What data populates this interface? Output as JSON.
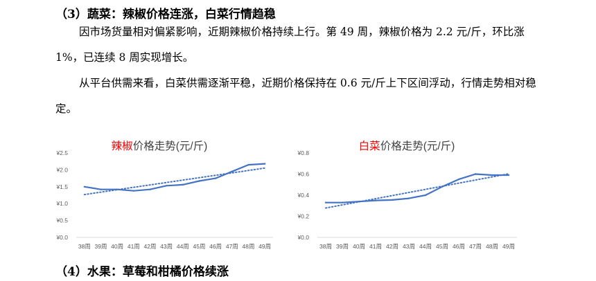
{
  "section3": {
    "heading": "（3）蔬菜：辣椒价格连涨，白菜行情趋稳",
    "para1": "因市场货量相对偏紧影响，近期辣椒价格持续上行。第 49 周，辣椒价格为 2.2 元/斤，环比涨 1%，已连续 8 周实现增长。",
    "para2": "从平台供需来看，白菜供需逐渐平稳，近期价格保持在 0.6 元/斤上下区间浮动，行情走势相对稳定。"
  },
  "section4": {
    "heading": "（4）水果：草莓和柑橘价格续涨"
  },
  "colors": {
    "series": "#4472C4",
    "title_highlight": "#FF0000",
    "axis_text": "#595959",
    "axis_line": "#D9D9D9"
  },
  "chart_data": [
    {
      "type": "line",
      "title_highlight": "辣椒",
      "title_rest": "价格走势(元/斤)",
      "categories": [
        "38周",
        "39周",
        "40周",
        "41周",
        "42周",
        "43周",
        "44周",
        "45周",
        "46周",
        "47周",
        "48周",
        "49周"
      ],
      "series": [
        {
          "values": [
            1.5,
            1.42,
            1.42,
            1.38,
            1.42,
            1.53,
            1.56,
            1.67,
            1.75,
            1.95,
            2.15,
            2.18
          ]
        }
      ],
      "trendline": {
        "type": "linear",
        "style": "dotted"
      },
      "ylim": [
        0,
        2.5
      ],
      "yticks": [
        "¥0.0",
        "¥0.5",
        "¥1.0",
        "¥1.5",
        "¥2.0",
        "¥2.5"
      ],
      "grid": false
    },
    {
      "type": "line",
      "title_highlight": "白菜",
      "title_rest": "价格走势(元/斤)",
      "categories": [
        "38周",
        "39周",
        "40周",
        "41周",
        "42周",
        "43周",
        "44周",
        "45周",
        "46周",
        "47周",
        "48周",
        "49周"
      ],
      "series": [
        {
          "values": [
            0.33,
            0.33,
            0.34,
            0.35,
            0.355,
            0.37,
            0.4,
            0.48,
            0.55,
            0.6,
            0.59,
            0.59
          ]
        }
      ],
      "trendline": {
        "type": "linear",
        "style": "dotted"
      },
      "ylim": [
        0,
        0.8
      ],
      "yticks": [
        "¥0.0",
        "¥0.2",
        "¥0.4",
        "¥0.6",
        "¥0.8"
      ],
      "grid": false
    }
  ]
}
